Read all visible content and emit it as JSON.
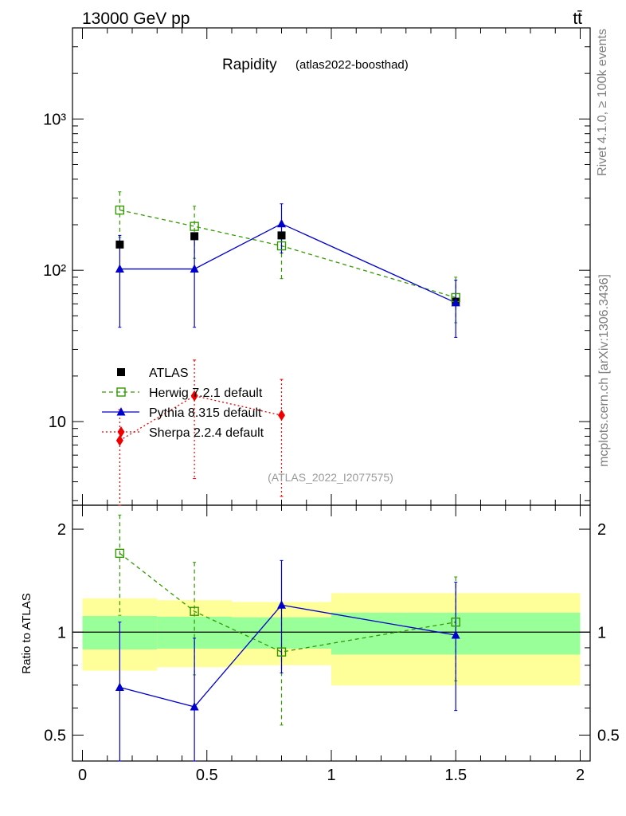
{
  "header": {
    "left": "13000 GeV pp",
    "right": "tt̄"
  },
  "side_labels": {
    "rivet": "Rivet 4.1.0, ≥ 100k events",
    "mcplots": "mcplots.cern.ch [arXiv:1306.3436]"
  },
  "chart_data": [
    {
      "type": "scatter",
      "panel": "main",
      "title": "Rapidity",
      "subtitle": "(atlas2022-boosthad)",
      "analysis_label": "(ATLAS_2022_I2077575)",
      "yscale": "log",
      "xlim": [
        -0.04,
        2.04
      ],
      "ylim": [
        2.8,
        4000
      ],
      "ytick_labels": [
        "10",
        "10²",
        "10³"
      ],
      "ytick_values": [
        10,
        100,
        1000
      ],
      "legend_position": "middle-left",
      "series": [
        {
          "name": "ATLAS",
          "color": "#000000",
          "marker": "filled-square",
          "line": "none",
          "points": [
            {
              "x": 0.15,
              "y": 148
            },
            {
              "x": 0.45,
              "y": 168
            },
            {
              "x": 0.8,
              "y": 170
            },
            {
              "x": 1.5,
              "y": 62
            }
          ]
        },
        {
          "name": "Herwig 7.2.1 default",
          "color": "#339900",
          "marker": "open-square",
          "line": "dashed",
          "points": [
            {
              "x": 0.15,
              "y": 250,
              "lo": 165,
              "hi": 330
            },
            {
              "x": 0.45,
              "y": 195,
              "lo": 120,
              "hi": 265
            },
            {
              "x": 0.8,
              "y": 145,
              "lo": 88,
              "hi": 200
            },
            {
              "x": 1.5,
              "y": 66,
              "lo": 45,
              "hi": 90
            }
          ]
        },
        {
          "name": "Pythia 8.315 default",
          "color": "#0000cc",
          "marker": "filled-triangle",
          "line": "solid",
          "points": [
            {
              "x": 0.15,
              "y": 102,
              "lo": 42,
              "hi": 170
            },
            {
              "x": 0.45,
              "y": 102,
              "lo": 42,
              "hi": 170
            },
            {
              "x": 0.8,
              "y": 203,
              "lo": 130,
              "hi": 275
            },
            {
              "x": 1.5,
              "y": 61,
              "lo": 36,
              "hi": 86
            }
          ]
        },
        {
          "name": "Sherpa 2.2.4 default",
          "color": "#ee0000",
          "marker": "filled-diamond",
          "line": "dotted",
          "points": [
            {
              "x": 0.15,
              "y": 7.5,
              "lo": 2.8,
              "hi": 12
            },
            {
              "x": 0.45,
              "y": 14.8,
              "lo": 4.2,
              "hi": 25.5
            },
            {
              "x": 0.8,
              "y": 11,
              "lo": 3.2,
              "hi": 19
            }
          ]
        }
      ]
    },
    {
      "type": "scatter",
      "panel": "ratio",
      "ylabel": "Ratio to ATLAS",
      "yscale": "log",
      "xlim": [
        -0.04,
        2.04
      ],
      "ylim": [
        0.42,
        2.35
      ],
      "xtick_labels": [
        "0",
        "0.5",
        "1",
        "1.5",
        "2"
      ],
      "xtick_values": [
        0,
        0.5,
        1,
        1.5,
        2
      ],
      "ytick_labels": [
        "0.5",
        "1",
        "2"
      ],
      "ytick_values": [
        0.5,
        1,
        2
      ],
      "reference_line": 1,
      "uncertainty_bands": [
        {
          "x0": 0.0,
          "x1": 0.3,
          "stat_lo": 0.89,
          "stat_hi": 1.115,
          "tot_lo": 0.772,
          "tot_hi": 1.255
        },
        {
          "x0": 0.3,
          "x1": 0.6,
          "stat_lo": 0.895,
          "stat_hi": 1.11,
          "tot_lo": 0.79,
          "tot_hi": 1.24
        },
        {
          "x0": 0.6,
          "x1": 1.0,
          "stat_lo": 0.895,
          "stat_hi": 1.105,
          "tot_lo": 0.8,
          "tot_hi": 1.225
        },
        {
          "x0": 1.0,
          "x1": 2.0,
          "stat_lo": 0.86,
          "stat_hi": 1.14,
          "tot_lo": 0.698,
          "tot_hi": 1.3
        }
      ],
      "series": [
        {
          "name": "Herwig 7.2.1 default",
          "color": "#339900",
          "marker": "open-square",
          "line": "dashed",
          "points": [
            {
              "x": 0.15,
              "y": 1.7,
              "lo": 1.12,
              "hi": 2.2
            },
            {
              "x": 0.45,
              "y": 1.15,
              "lo": 0.75,
              "hi": 1.6
            },
            {
              "x": 0.8,
              "y": 0.875,
              "lo": 0.535,
              "hi": 1.18
            },
            {
              "x": 1.5,
              "y": 1.07,
              "lo": 0.72,
              "hi": 1.45
            }
          ]
        },
        {
          "name": "Pythia 8.315 default",
          "color": "#0000cc",
          "marker": "filled-triangle",
          "line": "solid",
          "points": [
            {
              "x": 0.15,
              "y": 0.69,
              "lo": 0.42,
              "hi": 1.07
            },
            {
              "x": 0.45,
              "y": 0.605,
              "lo": 0.42,
              "hi": 0.96
            },
            {
              "x": 0.8,
              "y": 1.2,
              "lo": 0.76,
              "hi": 1.62
            },
            {
              "x": 1.5,
              "y": 0.98,
              "lo": 0.59,
              "hi": 1.4
            }
          ]
        }
      ]
    }
  ]
}
